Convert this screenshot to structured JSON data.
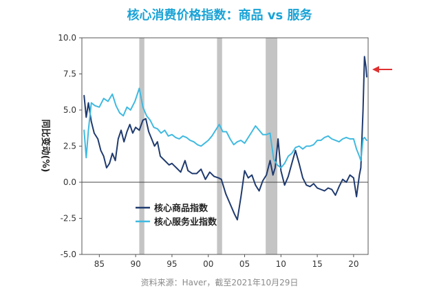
{
  "title": "核心消费价格指数：商品 vs 服务",
  "source": "资料来源：Haver，截至2021年10月29日",
  "colors": {
    "goods": "#1f3a6e",
    "services": "#3fb9e0",
    "recession": "#c4c4c4",
    "arrow": "#e03030"
  },
  "chart_data": {
    "type": "line",
    "title": "核心消费价格指数：商品 vs 服务",
    "xlabel": "",
    "ylabel": "同比变动(%)",
    "xlim": [
      1982.6,
      2022.0
    ],
    "ylim": [
      -5.0,
      10.0
    ],
    "x_ticks": [
      1985,
      1990,
      1995,
      2000,
      2005,
      2010,
      2015,
      2020
    ],
    "x_tick_labels": [
      "85",
      "90",
      "95",
      "00",
      "05",
      "10",
      "15",
      "20"
    ],
    "y_ticks": [
      10.0,
      7.5,
      5.0,
      2.5,
      0.0,
      -2.5,
      -5.0
    ],
    "y_tick_labels": [
      "10.0",
      "7.5",
      "5.0",
      "2.5",
      "0.0",
      "-2.5",
      "-5.0"
    ],
    "recessions": [
      [
        1990.5,
        1991.2
      ],
      [
        2001.2,
        2001.9
      ],
      [
        2007.9,
        2009.5
      ]
    ],
    "legend_position": "lower-left",
    "annotation": "red arrow pointing at latest goods value",
    "series": [
      {
        "name": "核心商品指数",
        "key": "goods",
        "points": [
          [
            1982.9,
            6.0
          ],
          [
            1983.2,
            4.5
          ],
          [
            1983.5,
            5.5
          ],
          [
            1983.9,
            4.2
          ],
          [
            1984.3,
            3.4
          ],
          [
            1984.8,
            3.0
          ],
          [
            1985.2,
            2.2
          ],
          [
            1985.6,
            1.8
          ],
          [
            1986.0,
            1.0
          ],
          [
            1986.4,
            1.3
          ],
          [
            1986.8,
            2.0
          ],
          [
            1987.2,
            1.5
          ],
          [
            1987.6,
            3.0
          ],
          [
            1988.0,
            3.6
          ],
          [
            1988.4,
            2.8
          ],
          [
            1988.8,
            3.5
          ],
          [
            1989.2,
            4.0
          ],
          [
            1989.6,
            3.4
          ],
          [
            1990.0,
            3.8
          ],
          [
            1990.5,
            3.6
          ],
          [
            1991.0,
            4.3
          ],
          [
            1991.4,
            4.4
          ],
          [
            1991.8,
            3.5
          ],
          [
            1992.2,
            3.0
          ],
          [
            1992.6,
            2.5
          ],
          [
            1993.0,
            2.8
          ],
          [
            1993.4,
            1.8
          ],
          [
            1994.0,
            1.5
          ],
          [
            1994.6,
            1.2
          ],
          [
            1995.0,
            1.3
          ],
          [
            1995.6,
            1.0
          ],
          [
            1996.2,
            0.7
          ],
          [
            1996.8,
            1.5
          ],
          [
            1997.2,
            0.8
          ],
          [
            1997.8,
            0.6
          ],
          [
            1998.4,
            0.6
          ],
          [
            1999.0,
            0.9
          ],
          [
            1999.6,
            0.2
          ],
          [
            2000.2,
            0.7
          ],
          [
            2000.8,
            0.4
          ],
          [
            2001.4,
            0.3
          ],
          [
            2001.8,
            0.2
          ],
          [
            2002.4,
            -0.8
          ],
          [
            2003.0,
            -1.5
          ],
          [
            2003.6,
            -2.2
          ],
          [
            2004.0,
            -2.6
          ],
          [
            2004.5,
            -1.0
          ],
          [
            2005.0,
            0.8
          ],
          [
            2005.5,
            0.3
          ],
          [
            2006.0,
            0.5
          ],
          [
            2006.5,
            -0.2
          ],
          [
            2007.0,
            -0.6
          ],
          [
            2007.5,
            0.1
          ],
          [
            2008.0,
            0.5
          ],
          [
            2008.5,
            1.5
          ],
          [
            2008.9,
            0.5
          ],
          [
            2009.2,
            1.0
          ],
          [
            2009.6,
            3.0
          ],
          [
            2010.0,
            0.8
          ],
          [
            2010.5,
            -0.2
          ],
          [
            2011.0,
            0.4
          ],
          [
            2011.5,
            1.3
          ],
          [
            2012.0,
            2.2
          ],
          [
            2012.5,
            1.3
          ],
          [
            2013.0,
            0.3
          ],
          [
            2013.5,
            -0.2
          ],
          [
            2014.0,
            -0.3
          ],
          [
            2014.5,
            -0.1
          ],
          [
            2015.0,
            -0.4
          ],
          [
            2015.5,
            -0.5
          ],
          [
            2016.0,
            -0.6
          ],
          [
            2016.5,
            -0.4
          ],
          [
            2017.0,
            -0.5
          ],
          [
            2017.5,
            -0.9
          ],
          [
            2018.0,
            -0.3
          ],
          [
            2018.5,
            0.2
          ],
          [
            2019.0,
            0.0
          ],
          [
            2019.5,
            0.5
          ],
          [
            2020.0,
            0.3
          ],
          [
            2020.4,
            -1.0
          ],
          [
            2020.8,
            0.5
          ],
          [
            2021.0,
            1.0
          ],
          [
            2021.3,
            5.0
          ],
          [
            2021.5,
            8.7
          ],
          [
            2021.7,
            8.0
          ],
          [
            2021.8,
            7.3
          ]
        ]
      },
      {
        "name": "核心服务业指数",
        "key": "services",
        "points": [
          [
            1982.9,
            3.6
          ],
          [
            1983.2,
            1.7
          ],
          [
            1983.5,
            3.6
          ],
          [
            1983.9,
            5.5
          ],
          [
            1984.4,
            5.3
          ],
          [
            1985.0,
            5.2
          ],
          [
            1985.6,
            5.8
          ],
          [
            1986.2,
            5.6
          ],
          [
            1986.8,
            6.1
          ],
          [
            1987.3,
            5.3
          ],
          [
            1987.8,
            4.8
          ],
          [
            1988.3,
            4.6
          ],
          [
            1988.8,
            5.2
          ],
          [
            1989.3,
            5.0
          ],
          [
            1989.9,
            5.6
          ],
          [
            1990.5,
            6.5
          ],
          [
            1991.0,
            5.2
          ],
          [
            1991.5,
            4.6
          ],
          [
            1992.0,
            4.3
          ],
          [
            1992.5,
            3.8
          ],
          [
            1993.0,
            3.7
          ],
          [
            1993.5,
            3.4
          ],
          [
            1994.0,
            3.6
          ],
          [
            1994.5,
            3.2
          ],
          [
            1995.0,
            3.3
          ],
          [
            1995.5,
            3.1
          ],
          [
            1996.0,
            3.0
          ],
          [
            1996.5,
            3.2
          ],
          [
            1997.0,
            3.1
          ],
          [
            1997.5,
            2.9
          ],
          [
            1998.0,
            2.8
          ],
          [
            1998.5,
            2.6
          ],
          [
            1999.0,
            2.5
          ],
          [
            1999.5,
            2.7
          ],
          [
            2000.0,
            2.9
          ],
          [
            2000.5,
            3.2
          ],
          [
            2001.0,
            3.6
          ],
          [
            2001.5,
            4.0
          ],
          [
            2002.0,
            3.5
          ],
          [
            2002.5,
            3.5
          ],
          [
            2003.0,
            3.0
          ],
          [
            2003.5,
            2.6
          ],
          [
            2004.0,
            2.8
          ],
          [
            2004.5,
            2.9
          ],
          [
            2005.0,
            2.7
          ],
          [
            2005.5,
            3.1
          ],
          [
            2006.0,
            3.5
          ],
          [
            2006.5,
            3.9
          ],
          [
            2007.0,
            3.6
          ],
          [
            2007.5,
            3.3
          ],
          [
            2008.0,
            3.3
          ],
          [
            2008.5,
            3.4
          ],
          [
            2009.0,
            1.6
          ],
          [
            2009.5,
            1.2
          ],
          [
            2010.0,
            1.0
          ],
          [
            2010.5,
            1.3
          ],
          [
            2011.0,
            1.8
          ],
          [
            2011.5,
            2.0
          ],
          [
            2012.0,
            2.4
          ],
          [
            2012.5,
            2.5
          ],
          [
            2013.0,
            2.3
          ],
          [
            2013.5,
            2.5
          ],
          [
            2014.0,
            2.5
          ],
          [
            2014.5,
            2.6
          ],
          [
            2015.0,
            2.9
          ],
          [
            2015.5,
            2.9
          ],
          [
            2016.0,
            3.1
          ],
          [
            2016.5,
            3.2
          ],
          [
            2017.0,
            3.0
          ],
          [
            2017.5,
            2.9
          ],
          [
            2018.0,
            2.8
          ],
          [
            2018.5,
            3.0
          ],
          [
            2019.0,
            3.1
          ],
          [
            2019.5,
            3.0
          ],
          [
            2020.0,
            3.0
          ],
          [
            2020.4,
            2.3
          ],
          [
            2020.8,
            1.8
          ],
          [
            2021.0,
            1.5
          ],
          [
            2021.3,
            3.0
          ],
          [
            2021.5,
            3.1
          ],
          [
            2021.8,
            2.9
          ]
        ]
      }
    ]
  }
}
